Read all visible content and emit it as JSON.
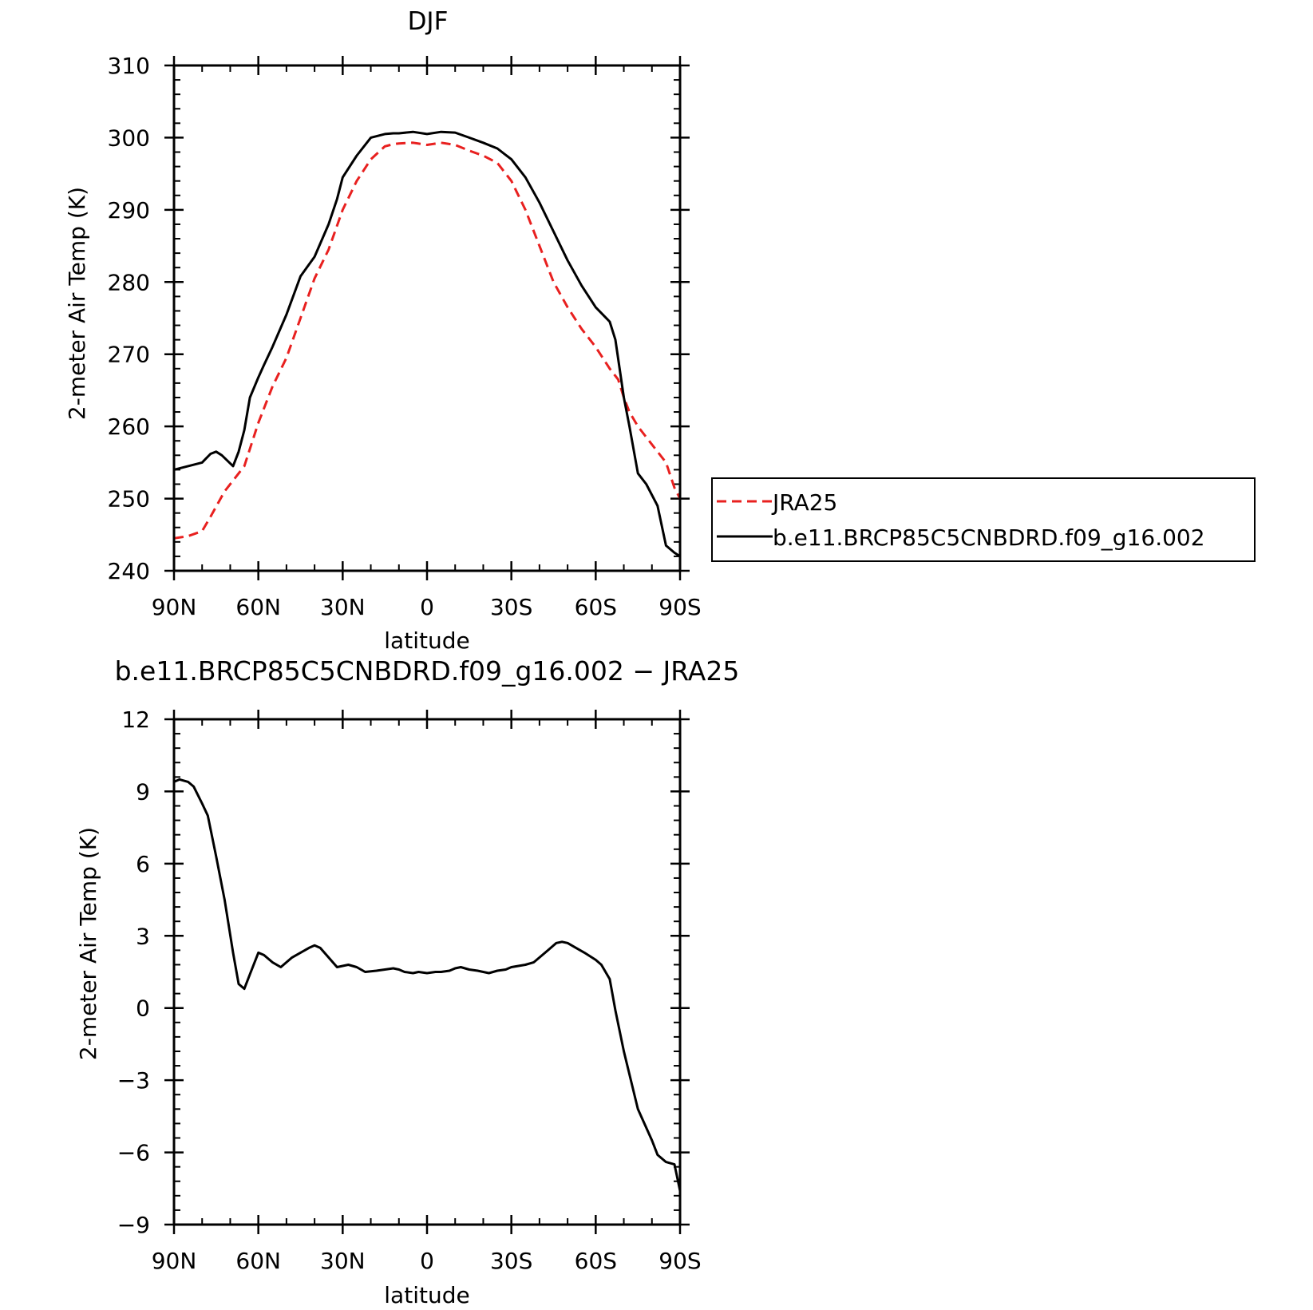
{
  "chart_data": [
    {
      "type": "line",
      "title": "DJF",
      "xlabel": "latitude",
      "ylabel": "2-meter Air Temp (K)",
      "ylim": [
        240,
        310
      ],
      "yticks": [
        240,
        250,
        260,
        270,
        280,
        290,
        300,
        310
      ],
      "ytick_labels": [
        "240",
        "250",
        "260",
        "270",
        "280",
        "290",
        "300",
        "310"
      ],
      "xlim": [
        90,
        -90
      ],
      "xticks": [
        90,
        60,
        30,
        0,
        -30,
        -60,
        -90
      ],
      "xtick_labels": [
        "90N",
        "60N",
        "30N",
        "0",
        "30S",
        "60S",
        "90S"
      ],
      "grid": false,
      "legend": "right",
      "series": [
        {
          "name": "JRA25",
          "color": "#e8201f",
          "dash": "dashed",
          "x": [
            90,
            85,
            80,
            77,
            72,
            65,
            60,
            55,
            50,
            45,
            40,
            35,
            30,
            25,
            20,
            15,
            12,
            10,
            5,
            0,
            -5,
            -10,
            -15,
            -20,
            -25,
            -30,
            -35,
            -40,
            -45,
            -50,
            -55,
            -60,
            -65,
            -68,
            -70,
            -72,
            -75,
            -78,
            -82,
            -85,
            -88,
            -90
          ],
          "values": [
            244.5,
            244.8,
            245.5,
            247.5,
            251.0,
            254.5,
            260.5,
            265.5,
            269.5,
            275.0,
            280.5,
            284.5,
            290.0,
            294.0,
            297.0,
            298.8,
            299.1,
            299.2,
            299.3,
            299.0,
            299.3,
            299.0,
            298.2,
            297.5,
            296.5,
            294.0,
            290.0,
            285.0,
            280.0,
            276.5,
            273.5,
            271.0,
            268.0,
            266.5,
            264.0,
            262.0,
            260.0,
            258.5,
            256.5,
            255.0,
            251.5,
            250.0
          ]
        },
        {
          "name": "b.e11.BRCP85C5CNBDRD.f09_g16.002",
          "color": "#000000",
          "dash": "solid",
          "x": [
            90,
            85,
            80,
            77,
            75,
            73,
            69,
            67,
            65,
            63,
            60,
            58,
            55,
            50,
            45,
            40,
            35,
            32,
            30,
            25,
            20,
            15,
            12,
            10,
            5,
            0,
            -5,
            -10,
            -15,
            -20,
            -25,
            -30,
            -35,
            -40,
            -45,
            -50,
            -55,
            -60,
            -65,
            -67,
            -70,
            -72,
            -75,
            -78,
            -82,
            -85,
            -88,
            -90
          ],
          "values": [
            254.0,
            254.5,
            255.0,
            256.2,
            256.5,
            256.0,
            254.5,
            256.5,
            259.5,
            264.0,
            266.8,
            268.5,
            271.0,
            275.5,
            280.8,
            283.5,
            288.0,
            291.5,
            294.5,
            297.5,
            300.0,
            300.5,
            300.6,
            300.6,
            300.8,
            300.5,
            300.8,
            300.7,
            300.0,
            299.3,
            298.5,
            297.0,
            294.5,
            291.0,
            287.0,
            283.0,
            279.5,
            276.5,
            274.5,
            272.0,
            264.0,
            260.0,
            253.5,
            252.0,
            249.0,
            243.5,
            242.5,
            242.0
          ]
        }
      ]
    },
    {
      "type": "line",
      "title": "b.e11.BRCP85C5CNBDRD.f09_g16.002 − JRA25",
      "xlabel": "latitude",
      "ylabel": "2-meter Air Temp (K)",
      "ylim": [
        -9,
        12
      ],
      "yticks": [
        -9,
        -6,
        -3,
        0,
        3,
        6,
        9,
        12
      ],
      "ytick_labels": [
        "−9",
        "−6",
        "−3",
        "0",
        "3",
        "6",
        "9",
        "12"
      ],
      "xlim": [
        90,
        -90
      ],
      "xticks": [
        90,
        60,
        30,
        0,
        -30,
        -60,
        -90
      ],
      "xtick_labels": [
        "90N",
        "60N",
        "30N",
        "0",
        "30S",
        "60S",
        "90S"
      ],
      "grid": false,
      "series": [
        {
          "color": "#000000",
          "dash": "solid",
          "x": [
            90,
            88,
            85,
            83,
            80,
            78,
            75,
            72,
            69,
            67,
            65,
            63,
            60,
            58,
            55,
            52,
            48,
            45,
            42,
            40,
            38,
            35,
            32,
            30,
            28,
            25,
            22,
            18,
            15,
            12,
            10,
            8,
            5,
            3,
            0,
            -3,
            -5,
            -8,
            -10,
            -12,
            -15,
            -18,
            -20,
            -22,
            -25,
            -28,
            -30,
            -35,
            -38,
            -40,
            -43,
            -46,
            -48,
            -50,
            -53,
            -56,
            -60,
            -62,
            -65,
            -67,
            -70,
            -75,
            -80,
            -82,
            -85,
            -88,
            -90
          ],
          "values": [
            9.4,
            9.5,
            9.4,
            9.2,
            8.5,
            8.0,
            6.3,
            4.5,
            2.3,
            1.0,
            0.8,
            1.4,
            2.3,
            2.2,
            1.9,
            1.7,
            2.1,
            2.3,
            2.5,
            2.6,
            2.5,
            2.1,
            1.7,
            1.75,
            1.8,
            1.7,
            1.5,
            1.55,
            1.6,
            1.65,
            1.6,
            1.5,
            1.45,
            1.5,
            1.45,
            1.5,
            1.5,
            1.55,
            1.65,
            1.7,
            1.6,
            1.55,
            1.5,
            1.45,
            1.55,
            1.6,
            1.7,
            1.8,
            1.9,
            2.1,
            2.4,
            2.7,
            2.75,
            2.7,
            2.5,
            2.3,
            2.0,
            1.8,
            1.2,
            -0.1,
            -1.8,
            -4.2,
            -5.5,
            -6.1,
            -6.4,
            -6.5,
            -7.6
          ]
        }
      ]
    }
  ]
}
